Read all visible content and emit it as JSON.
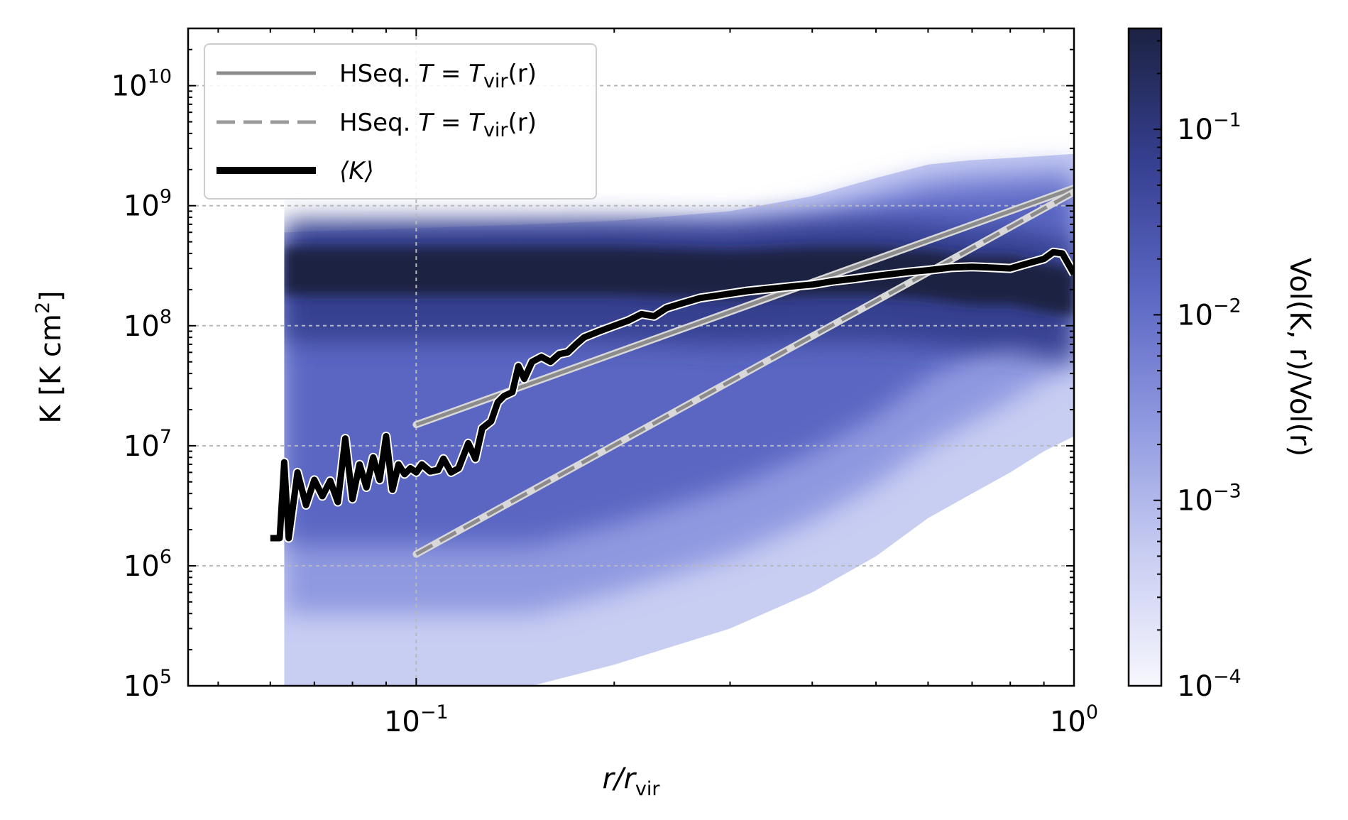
{
  "chart_data": {
    "type": "heatmap",
    "title": "",
    "x_scale": "log",
    "y_scale": "log",
    "xlim": [
      0.045,
      1.0
    ],
    "ylim": [
      100000,
      30000000000
    ],
    "grid": true,
    "legend_position": "top-left",
    "xlabel": {
      "main": "r/r",
      "sub": "vir"
    },
    "ylabel": {
      "main": "K [K cm",
      "sup": "2",
      "end": "]"
    },
    "x_ticks": [
      {
        "value": 0.1,
        "base": "10",
        "exp": "−1"
      },
      {
        "value": 1.0,
        "base": "10",
        "exp": "0"
      }
    ],
    "y_ticks": [
      {
        "value": 100000,
        "base": "10",
        "exp": "5"
      },
      {
        "value": 1000000,
        "base": "10",
        "exp": "6"
      },
      {
        "value": 10000000,
        "base": "10",
        "exp": "7"
      },
      {
        "value": 100000000,
        "base": "10",
        "exp": "8"
      },
      {
        "value": 1000000000,
        "base": "10",
        "exp": "9"
      },
      {
        "value": 10000000000,
        "base": "10",
        "exp": "10"
      }
    ],
    "colorbar": {
      "label": "Vol(K, r)/Vol(r)",
      "scale": "log",
      "range": [
        0.0001,
        0.35
      ],
      "colormap": [
        "#f7f7fd",
        "#c8cdf2",
        "#8f99e0",
        "#5a66c2",
        "#353f8f",
        "#1c2242"
      ],
      "ticks": [
        {
          "value": 0.0001,
          "base": "10",
          "exp": "−4"
        },
        {
          "value": 0.001,
          "base": "10",
          "exp": "−3"
        },
        {
          "value": 0.01,
          "base": "10",
          "exp": "−2"
        },
        {
          "value": 0.1,
          "base": "10",
          "exp": "−1"
        }
      ]
    },
    "density_envelope": {
      "x": [
        0.063,
        0.1,
        0.15,
        0.2,
        0.3,
        0.4,
        0.5,
        0.6,
        0.7,
        0.8,
        0.9,
        1.0
      ],
      "upper": [
        600000000,
        650000000,
        700000000,
        750000000,
        900000000,
        1200000000,
        1700000000,
        2200000000,
        2400000000,
        2500000000,
        2600000000,
        2700000000
      ],
      "lower": [
        100000,
        100000,
        100000,
        150000,
        300000,
        600000,
        1200000,
        2500000,
        4000000,
        6000000,
        9000000,
        12000000
      ],
      "ridge": [
        300000000,
        300000000,
        300000000,
        300000000,
        280000000,
        300000000,
        300000000,
        280000000,
        250000000,
        250000000,
        220000000,
        200000000
      ]
    },
    "series": [
      {
        "name": "HSeq. T = T_vir(r)",
        "legend": {
          "prefix": "HSeq. ",
          "T": "T",
          "eq": " = ",
          "T2": "T",
          "sub": "vir",
          "end": "(r)"
        },
        "style": "solid",
        "color": "#8c8c8c",
        "x": [
          0.1,
          1.0
        ],
        "y": [
          15000000,
          1400000000
        ]
      },
      {
        "name": "HSeq. T = T_vir(r)",
        "legend": {
          "prefix": "HSeq. ",
          "T": "T",
          "eq": " = ",
          "T2": "T",
          "sub": "vir",
          "end": "(r)"
        },
        "style": "dashed",
        "color": "#8c8c8c",
        "x": [
          0.1,
          1.0
        ],
        "y": [
          1250000,
          1300000000
        ]
      },
      {
        "name": "⟨K⟩",
        "legend": {
          "text": "⟨K⟩"
        },
        "style": "thick",
        "color": "#000000",
        "x": [
          0.06,
          0.062,
          0.063,
          0.064,
          0.065,
          0.066,
          0.068,
          0.07,
          0.072,
          0.074,
          0.076,
          0.078,
          0.08,
          0.082,
          0.084,
          0.086,
          0.088,
          0.09,
          0.092,
          0.094,
          0.096,
          0.098,
          0.1,
          0.102,
          0.105,
          0.108,
          0.11,
          0.113,
          0.116,
          0.12,
          0.123,
          0.126,
          0.13,
          0.133,
          0.136,
          0.14,
          0.143,
          0.146,
          0.15,
          0.155,
          0.16,
          0.165,
          0.17,
          0.175,
          0.18,
          0.19,
          0.2,
          0.21,
          0.22,
          0.23,
          0.24,
          0.25,
          0.26,
          0.27,
          0.28,
          0.3,
          0.32,
          0.35,
          0.38,
          0.4,
          0.43,
          0.46,
          0.5,
          0.53,
          0.56,
          0.6,
          0.65,
          0.7,
          0.75,
          0.8,
          0.85,
          0.9,
          0.93,
          0.96,
          1.0
        ],
        "y": [
          1700000,
          1700000,
          7300000,
          1700000,
          3200000,
          6000000,
          3200000,
          5200000,
          3800000,
          5100000,
          3400000,
          11500000,
          3600000,
          7000000,
          4500000,
          8000000,
          5200000,
          12000000,
          4300000,
          7000000,
          5800000,
          6500000,
          6000000,
          7000000,
          6100000,
          6300000,
          7800000,
          6000000,
          6500000,
          10500000,
          7800000,
          14000000,
          16000000,
          23000000,
          26000000,
          28000000,
          46000000,
          36000000,
          50000000,
          55000000,
          50000000,
          58000000,
          60000000,
          70000000,
          80000000,
          90000000,
          100000000,
          110000000,
          125000000,
          120000000,
          140000000,
          150000000,
          160000000,
          170000000,
          175000000,
          185000000,
          195000000,
          205000000,
          215000000,
          220000000,
          235000000,
          245000000,
          260000000,
          270000000,
          280000000,
          290000000,
          305000000,
          310000000,
          305000000,
          300000000,
          330000000,
          360000000,
          410000000,
          400000000,
          270000000
        ]
      }
    ]
  }
}
